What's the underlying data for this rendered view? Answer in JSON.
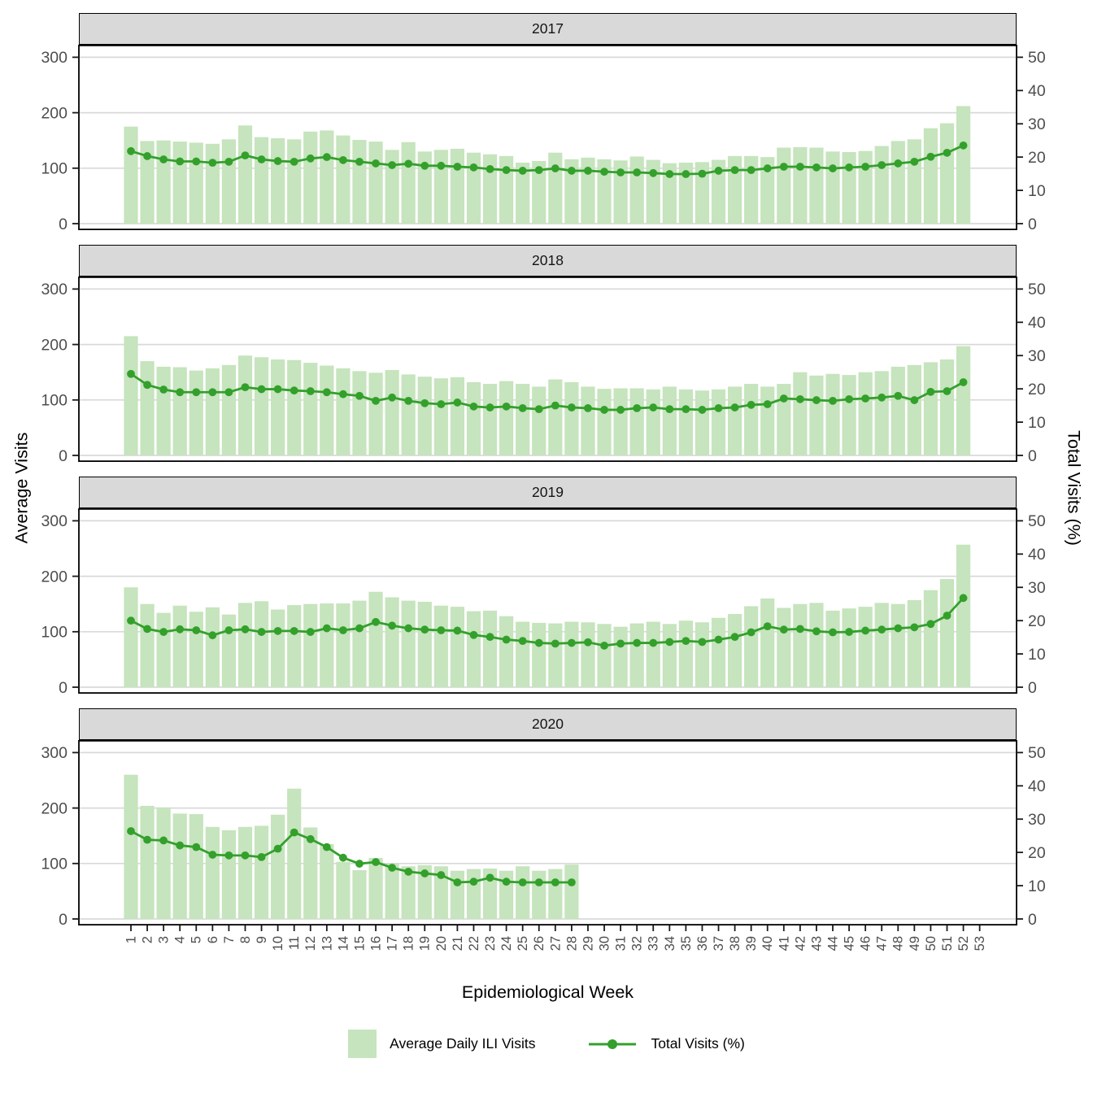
{
  "figure": {
    "x_axis": {
      "title": "Epidemiological Week",
      "tick_labels": [
        "1",
        "2",
        "3",
        "4",
        "5",
        "6",
        "7",
        "8",
        "9",
        "10",
        "11",
        "12",
        "13",
        "14",
        "15",
        "16",
        "17",
        "18",
        "19",
        "20",
        "21",
        "22",
        "23",
        "24",
        "25",
        "26",
        "27",
        "28",
        "29",
        "30",
        "31",
        "32",
        "33",
        "34",
        "35",
        "36",
        "37",
        "38",
        "39",
        "40",
        "41",
        "42",
        "43",
        "44",
        "45",
        "46",
        "47",
        "48",
        "49",
        "50",
        "51",
        "52",
        "53"
      ]
    },
    "y_left": {
      "title": "Average Visits",
      "ticks": [
        0,
        100,
        200,
        300
      ],
      "limit": [
        0,
        300
      ]
    },
    "y_right": {
      "title": "Total Visits (%)",
      "ticks": [
        0,
        10,
        20,
        30,
        40,
        50
      ],
      "limit": [
        0,
        50
      ]
    },
    "legend": {
      "bar_label": "Average Daily ILI Visits",
      "line_label": "Total Visits (%)"
    },
    "colors": {
      "bar": "#c6e4bd",
      "line": "#33a02c",
      "strip_bg": "#d9d9d9",
      "grid": "#d9d9d9",
      "axis_text": "#4d4d4d",
      "border": "#000000"
    }
  },
  "chart_data": {
    "type": "bar",
    "subtype": "faceted bar + line combo, dual y-axes",
    "x_categories_weeks": "1-53",
    "bar_series_name": "Average Daily ILI Visits (left axis, 0-300)",
    "line_series_name": "Total Visits (%) (right axis, 0-50)",
    "grid": "horizontal major only",
    "legend_position": "bottom",
    "facets": [
      {
        "facet_label": "2017",
        "weeks_with_data": 52,
        "bar_values": [
          175,
          149,
          150,
          148,
          146,
          144,
          152,
          177,
          156,
          154,
          152,
          166,
          168,
          159,
          151,
          148,
          133,
          147,
          130,
          133,
          135,
          128,
          125,
          122,
          110,
          113,
          128,
          116,
          119,
          116,
          114,
          121,
          115,
          109,
          110,
          111,
          115,
          122,
          122,
          120,
          137,
          138,
          137,
          130,
          129,
          131,
          140,
          149,
          152,
          172,
          181,
          212
        ],
        "line_values": [
          21.8,
          20.3,
          19.3,
          18.7,
          18.7,
          18.3,
          18.6,
          20.5,
          19.3,
          18.8,
          18.6,
          19.6,
          20.0,
          19.1,
          18.6,
          18.1,
          17.6,
          18.0,
          17.4,
          17.4,
          17.1,
          16.9,
          16.4,
          16.1,
          15.9,
          16.1,
          16.6,
          15.9,
          15.9,
          15.6,
          15.4,
          15.4,
          15.2,
          14.9,
          14.9,
          15.0,
          15.9,
          16.1,
          16.1,
          16.6,
          17.1,
          17.1,
          16.9,
          16.6,
          16.9,
          17.1,
          17.6,
          18.1,
          18.6,
          20.1,
          21.3,
          23.5
        ]
      },
      {
        "facet_label": "2018",
        "weeks_with_data": 52,
        "bar_values": [
          215,
          170,
          160,
          159,
          153,
          157,
          163,
          180,
          177,
          173,
          172,
          167,
          162,
          157,
          152,
          149,
          154,
          146,
          142,
          139,
          141,
          132,
          129,
          134,
          129,
          124,
          137,
          132,
          124,
          120,
          121,
          121,
          119,
          124,
          119,
          117,
          119,
          124,
          129,
          124,
          129,
          150,
          144,
          147,
          145,
          150,
          152,
          160,
          163,
          168,
          173,
          197
        ],
        "line_values": [
          24.5,
          21.2,
          19.8,
          19.0,
          19.0,
          19.0,
          19.0,
          20.5,
          19.9,
          19.9,
          19.5,
          19.3,
          19.0,
          18.4,
          17.9,
          16.4,
          17.4,
          16.4,
          15.7,
          15.4,
          15.9,
          14.7,
          14.4,
          14.7,
          14.2,
          13.9,
          15.0,
          14.4,
          14.2,
          13.7,
          13.7,
          14.2,
          14.4,
          13.9,
          13.9,
          13.7,
          14.2,
          14.4,
          15.2,
          15.4,
          17.1,
          16.9,
          16.6,
          16.4,
          16.9,
          17.1,
          17.4,
          17.9,
          16.6,
          19.1,
          19.3,
          22.0
        ]
      },
      {
        "facet_label": "2019",
        "weeks_with_data": 52,
        "bar_values": [
          180,
          150,
          134,
          147,
          136,
          144,
          131,
          152,
          155,
          140,
          148,
          150,
          151,
          151,
          156,
          172,
          162,
          156,
          154,
          147,
          145,
          137,
          138,
          128,
          118,
          116,
          115,
          118,
          117,
          114,
          109,
          115,
          118,
          114,
          120,
          117,
          125,
          132,
          146,
          160,
          143,
          150,
          152,
          138,
          142,
          145,
          152,
          150,
          157,
          175,
          195,
          257
        ],
        "line_values": [
          20.0,
          17.5,
          16.6,
          17.4,
          17.1,
          15.6,
          17.1,
          17.4,
          16.6,
          16.9,
          16.9,
          16.6,
          17.7,
          17.1,
          17.7,
          19.6,
          18.5,
          17.7,
          17.3,
          17.1,
          17.0,
          15.7,
          15.1,
          14.3,
          13.9,
          13.3,
          13.1,
          13.3,
          13.5,
          12.5,
          13.1,
          13.3,
          13.3,
          13.6,
          13.9,
          13.6,
          14.3,
          15.1,
          16.5,
          18.3,
          17.3,
          17.5,
          16.8,
          16.5,
          16.6,
          17.0,
          17.3,
          17.7,
          18.0,
          19.0,
          21.5,
          26.8
        ]
      },
      {
        "facet_label": "2020",
        "weeks_with_data": 28,
        "bar_values": [
          260,
          204,
          201,
          190,
          189,
          166,
          160,
          166,
          168,
          188,
          235,
          165,
          135,
          103,
          88,
          110,
          100,
          95,
          97,
          95,
          87,
          90,
          91,
          87,
          95,
          87,
          90,
          98
        ],
        "line_values": [
          26.4,
          23.8,
          23.6,
          22.1,
          21.6,
          19.3,
          19.1,
          19.1,
          18.6,
          21.1,
          26.0,
          24.0,
          21.6,
          18.4,
          16.6,
          17.1,
          15.4,
          14.2,
          13.7,
          13.2,
          11.0,
          11.2,
          12.4,
          11.2,
          11.0,
          11.0,
          11.0,
          11.0
        ]
      }
    ]
  }
}
